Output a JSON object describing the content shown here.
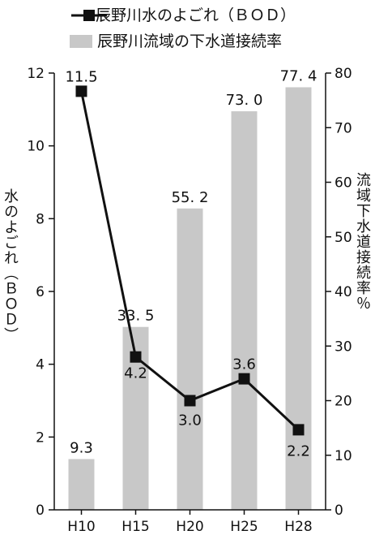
{
  "chart_data": {
    "type": "bar+line",
    "categories": [
      "H10",
      "H15",
      "H20",
      "H25",
      "H28"
    ],
    "bar_series": {
      "name": "辰野川流域の下水道接続率",
      "values": [
        9.3,
        33.5,
        55.2,
        73.0,
        77.4
      ],
      "labels": [
        "9.3",
        "33. 5",
        "55. 2",
        "73. 0",
        "77. 4"
      ],
      "color": "#c8c8c8",
      "axis": "right"
    },
    "line_series": {
      "name": "辰野川水のよごれ（ＢＯＤ）",
      "values": [
        11.5,
        4.2,
        3.0,
        3.6,
        2.2
      ],
      "labels": [
        "11.5",
        "4.2",
        "3.0",
        "3.6",
        "2.2"
      ],
      "color": "#111111",
      "axis": "left"
    },
    "left_axis": {
      "label": "水のよごれ（ＢＯＤ）",
      "ylim": [
        0,
        12
      ],
      "ticks": [
        "0",
        "2",
        "4",
        "6",
        "8",
        "10",
        "12"
      ]
    },
    "right_axis": {
      "label": "流域下水道接続率％",
      "ylim": [
        0,
        80
      ],
      "ticks": [
        "0",
        "10",
        "20",
        "30",
        "40",
        "50",
        "60",
        "70",
        "80"
      ]
    },
    "legend_position": "top"
  }
}
